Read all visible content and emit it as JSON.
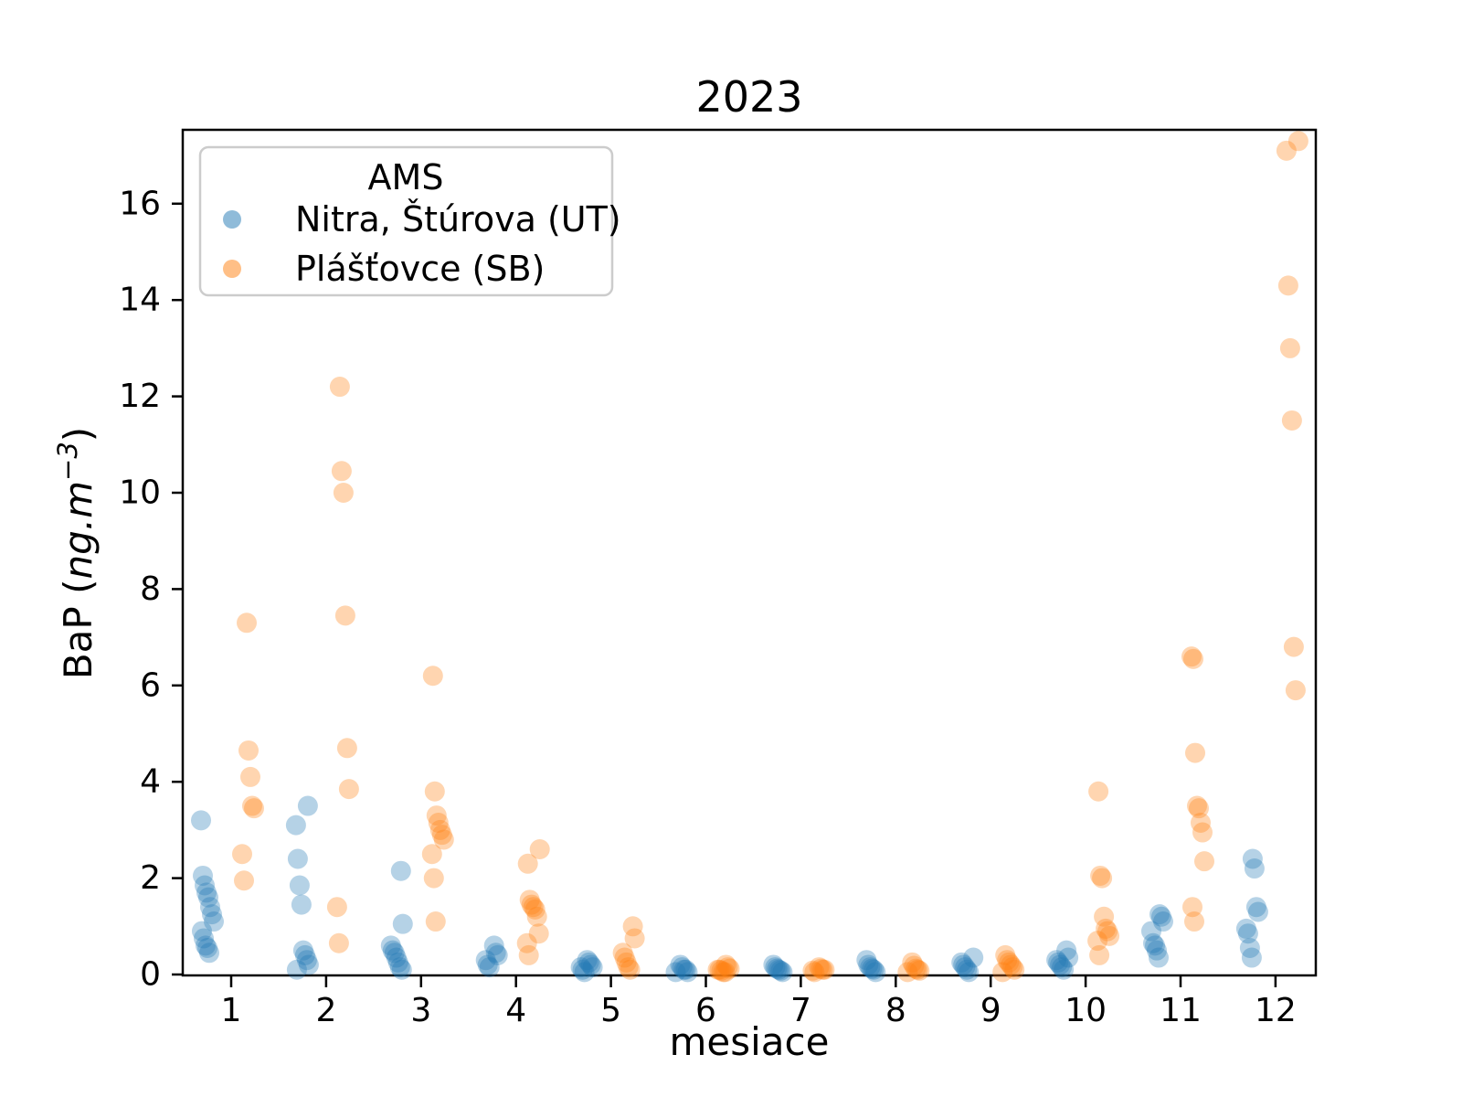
{
  "title": "2023",
  "legend": {
    "title": "AMS",
    "items": [
      {
        "label": "Nitra, Štúrova (UT)",
        "color": "#1f77b4"
      },
      {
        "label": "Plášťovce (SB)",
        "color": "#ff7f0e"
      }
    ]
  },
  "chart_data": {
    "type": "scatter",
    "subtype": "strip-plot-dodged",
    "title": "2023",
    "xlabel": "mesiace",
    "ylabel": "BaP (ng.m⁻³)",
    "ylabel_parts": {
      "pre": "BaP  (",
      "italic_unit": "ng.m",
      "sup": "−3",
      "post": ")"
    },
    "legend_title": "AMS",
    "legend_position": "upper-left",
    "grid": false,
    "x_ticks": [
      1,
      2,
      3,
      4,
      5,
      6,
      7,
      8,
      9,
      10,
      11,
      12
    ],
    "y_ticks": [
      0,
      2,
      4,
      6,
      8,
      10,
      12,
      14,
      16
    ],
    "xlim": [
      0.5,
      12.5
    ],
    "ylim": [
      -0.15,
      17.5
    ],
    "marker_alpha": 0.33,
    "series": [
      {
        "name": "Nitra, Štúrova (UT)",
        "color": "#1f77b4",
        "values_by_month": [
          [
            3.2,
            2.05,
            1.85,
            1.7,
            1.6,
            1.4,
            1.25,
            1.1,
            0.9,
            0.75,
            0.6,
            0.55,
            0.45
          ],
          [
            3.5,
            3.1,
            2.4,
            1.85,
            1.45,
            0.5,
            0.4,
            0.3,
            0.2,
            0.1
          ],
          [
            2.15,
            1.05,
            0.6,
            0.5,
            0.45,
            0.35,
            0.25,
            0.15,
            0.1
          ],
          [
            0.6,
            0.45,
            0.4,
            0.3,
            0.2,
            0.15
          ],
          [
            0.3,
            0.25,
            0.2,
            0.15,
            0.15,
            0.1,
            0.05
          ],
          [
            0.2,
            0.15,
            0.1,
            0.1,
            0.05,
            0.05
          ],
          [
            0.2,
            0.15,
            0.12,
            0.1,
            0.08,
            0.05
          ],
          [
            0.3,
            0.2,
            0.15,
            0.12,
            0.1,
            0.05
          ],
          [
            0.35,
            0.25,
            0.2,
            0.15,
            0.1,
            0.05
          ],
          [
            0.5,
            0.35,
            0.3,
            0.25,
            0.2,
            0.15,
            0.1
          ],
          [
            1.25,
            1.2,
            1.1,
            0.9,
            0.65,
            0.6,
            0.5,
            0.35
          ],
          [
            2.4,
            2.2,
            1.4,
            1.3,
            0.95,
            0.85,
            0.55,
            0.35
          ]
        ]
      },
      {
        "name": "Plášťovce (SB)",
        "color": "#ff7f0e",
        "values_by_month": [
          [
            7.3,
            4.65,
            4.1,
            3.5,
            3.45,
            2.5,
            1.95
          ],
          [
            12.2,
            10.45,
            10.0,
            7.45,
            4.7,
            3.85,
            1.4,
            0.65
          ],
          [
            6.2,
            3.8,
            3.3,
            3.15,
            3.0,
            2.9,
            2.8,
            2.5,
            2.0,
            1.1
          ],
          [
            2.6,
            2.3,
            1.55,
            1.45,
            1.4,
            1.35,
            1.2,
            0.85,
            0.65,
            0.4
          ],
          [
            1.0,
            0.75,
            0.45,
            0.35,
            0.25,
            0.15,
            0.1
          ],
          [
            0.2,
            0.15,
            0.12,
            0.1,
            0.1,
            0.08,
            0.05,
            0.05
          ],
          [
            0.15,
            0.12,
            0.1,
            0.1,
            0.08,
            0.05
          ],
          [
            0.25,
            0.18,
            0.12,
            0.1,
            0.08,
            0.05
          ],
          [
            0.4,
            0.3,
            0.25,
            0.2,
            0.15,
            0.1,
            0.05
          ],
          [
            3.8,
            2.05,
            2.0,
            1.2,
            0.95,
            0.9,
            0.8,
            0.7,
            0.4
          ],
          [
            6.6,
            6.55,
            4.6,
            3.5,
            3.45,
            3.15,
            2.95,
            2.35,
            1.4,
            1.1
          ],
          [
            17.3,
            17.1,
            14.3,
            13.0,
            11.5,
            6.8,
            5.9
          ]
        ]
      }
    ]
  }
}
